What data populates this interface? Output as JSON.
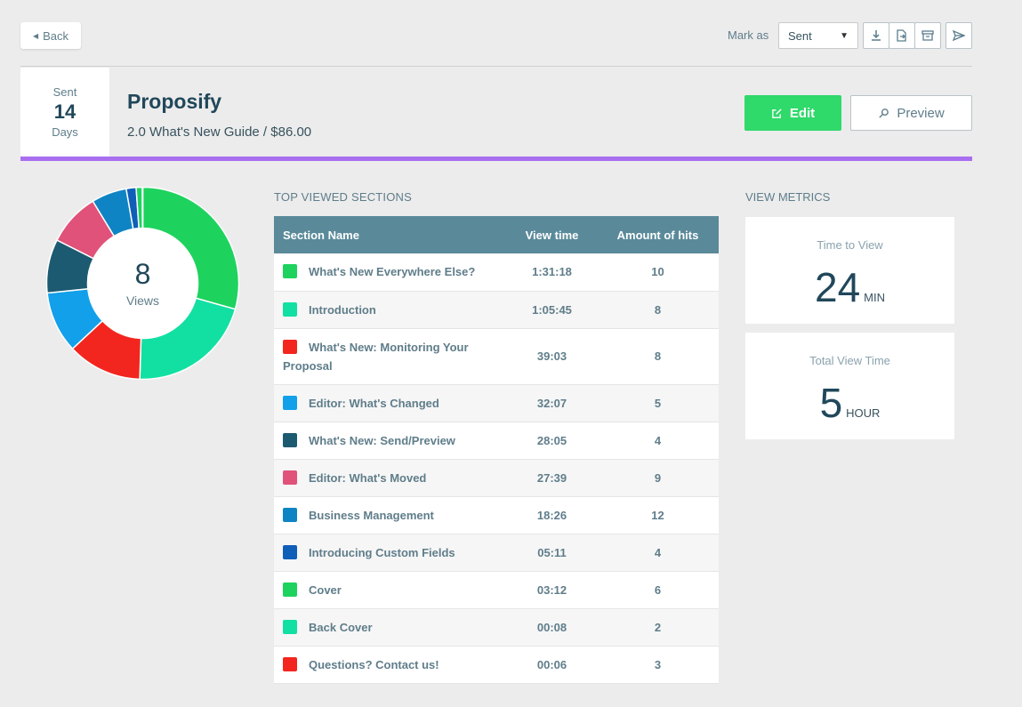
{
  "toolbar": {
    "back_label": "Back",
    "mark_as_label": "Mark as",
    "status_value": "Sent"
  },
  "header": {
    "sent_label": "Sent",
    "sent_days": "14",
    "sent_unit": "Days",
    "title": "Proposify",
    "subtitle": "2.0 What's New Guide / $86.00",
    "edit_label": "Edit",
    "preview_label": "Preview"
  },
  "colors": {
    "accent_purple": "#a96ef0",
    "edit_green": "#2fd96a",
    "table_header": "#5a8a9a"
  },
  "donut": {
    "count": "8",
    "label": "Views"
  },
  "sections": {
    "heading": "TOP VIEWED SECTIONS",
    "columns": [
      "Section Name",
      "View time",
      "Amount of hits"
    ],
    "rows": [
      {
        "name": "What's New Everywhere Else?",
        "time": "1:31:18",
        "hits": "10",
        "color": "#1dd35e"
      },
      {
        "name": "Introduction",
        "time": "1:05:45",
        "hits": "8",
        "color": "#12e0a2"
      },
      {
        "name": "What's New: Monitoring Your Proposal",
        "time": "39:03",
        "hits": "8",
        "color": "#f2261f"
      },
      {
        "name": "Editor: What's Changed",
        "time": "32:07",
        "hits": "5",
        "color": "#12a0ea"
      },
      {
        "name": "What's New: Send/Preview",
        "time": "28:05",
        "hits": "4",
        "color": "#1c5a71"
      },
      {
        "name": "Editor: What's Moved",
        "time": "27:39",
        "hits": "9",
        "color": "#e0527a"
      },
      {
        "name": "Business Management",
        "time": "18:26",
        "hits": "12",
        "color": "#0f84c4"
      },
      {
        "name": "Introducing Custom Fields",
        "time": "05:11",
        "hits": "4",
        "color": "#0f5fb8"
      },
      {
        "name": "Cover",
        "time": "03:12",
        "hits": "6",
        "color": "#1dd35e"
      },
      {
        "name": "Back Cover",
        "time": "00:08",
        "hits": "2",
        "color": "#12e0a2"
      },
      {
        "name": "Questions? Contact us!",
        "time": "00:06",
        "hits": "3",
        "color": "#f2261f"
      }
    ]
  },
  "metrics": {
    "heading": "VIEW METRICS",
    "time_to_view": {
      "label": "Time to View",
      "value": "24",
      "unit": "MIN"
    },
    "total_view_time": {
      "label": "Total View Time",
      "value": "5",
      "unit": "HOUR"
    }
  }
}
